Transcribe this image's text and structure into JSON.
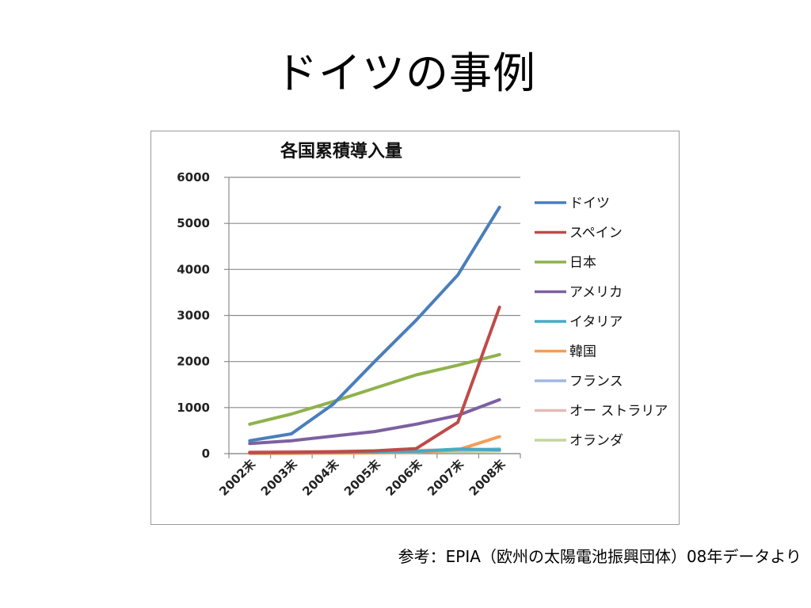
{
  "slide": {
    "title": "ドイツの事例",
    "source_note": "参考：EPIA（欧州の太陽電池振興団体）08年データより"
  },
  "chart_data": {
    "type": "line",
    "title": "各国累積導入量",
    "xlabel": "",
    "ylabel": "",
    "categories": [
      "2002末",
      "2003末",
      "2004末",
      "2005末",
      "2006末",
      "2007末",
      "2008末"
    ],
    "ylim": [
      0,
      6000
    ],
    "yticks": [
      0,
      1000,
      2000,
      3000,
      4000,
      5000,
      6000
    ],
    "grid": true,
    "legend_position": "right",
    "series": [
      {
        "name": "ドイツ",
        "color": "#4a7ebb",
        "values": [
          280,
          430,
          1070,
          2000,
          2900,
          3880,
          5350
        ]
      },
      {
        "name": "スペイン",
        "color": "#be4b48",
        "values": [
          20,
          30,
          40,
          60,
          110,
          680,
          3180
        ]
      },
      {
        "name": "日本",
        "color": "#8fb24c",
        "values": [
          640,
          860,
          1130,
          1420,
          1710,
          1920,
          2150
        ]
      },
      {
        "name": "アメリカ",
        "color": "#7d60a0",
        "values": [
          220,
          280,
          380,
          480,
          640,
          830,
          1170
        ]
      },
      {
        "name": "イタリア",
        "color": "#46aac5",
        "values": [
          20,
          25,
          30,
          40,
          50,
          100,
          80
        ]
      },
      {
        "name": "韓国",
        "color": "#f59d56",
        "values": [
          5,
          5,
          10,
          15,
          30,
          80,
          370
        ]
      },
      {
        "name": "フランス",
        "color": "#a3b7e2",
        "values": [
          10,
          15,
          20,
          25,
          40,
          75,
          100
        ]
      },
      {
        "name": "オー ストラリア",
        "color": "#e6b9b8",
        "values": [
          40,
          45,
          50,
          60,
          70,
          80,
          100
        ]
      },
      {
        "name": "オランダ",
        "color": "#c3d69b",
        "values": [
          25,
          35,
          45,
          50,
          50,
          50,
          60
        ]
      }
    ]
  }
}
